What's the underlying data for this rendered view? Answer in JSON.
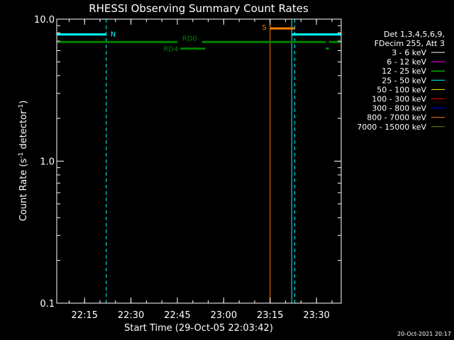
{
  "chart_data": {
    "type": "line",
    "title": "RHESSI Observing Summary Count Rates",
    "xlabel": "Start Time (29-Oct-05 22:03:42)",
    "ylabel_main": "Count Rate (s",
    "ylabel_sup1": "-1",
    "ylabel_mid": " detector",
    "ylabel_sup2": "-1",
    "ylabel_end": ")",
    "yscale": "log",
    "ylim": [
      0.1,
      10.0
    ],
    "xlim": [
      "22:06",
      "23:38"
    ],
    "x_ticks": [
      "22:15",
      "22:30",
      "22:45",
      "23:00",
      "23:15",
      "23:30"
    ],
    "y_ticks": [
      "10.0",
      "1.0",
      "0.1"
    ],
    "legend_header": [
      "Det 1,3,4,5,6,9,",
      "FDecim 255, Att 3"
    ],
    "legend": [
      {
        "label": "3 - 6 keV",
        "color": "#ffffff"
      },
      {
        "label": "6 - 12 keV",
        "color": "#ff00ff"
      },
      {
        "label": "12 - 25 keV",
        "color": "#00ff00"
      },
      {
        "label": "25 - 50 keV",
        "color": "#00ffff"
      },
      {
        "label": "50 - 100 keV",
        "color": "#ffff00"
      },
      {
        "label": "100 - 300 keV",
        "color": "#ff0000"
      },
      {
        "label": "300 - 800 keV",
        "color": "#0000ff"
      },
      {
        "label": "800 - 7000 keV",
        "color": "#ff8000"
      },
      {
        "label": "7000 - 15000 keV",
        "color": "#808000"
      }
    ],
    "flag_bars": [
      {
        "label": "N",
        "color": "#00ffff",
        "y": 7.8,
        "segments": [
          [
            "22:06",
            "22:22"
          ],
          [
            "23:22",
            "23:38"
          ]
        ]
      },
      {
        "label": "RD0",
        "color": "#008000",
        "y": 6.9,
        "segments": [
          [
            "22:06",
            "22:45"
          ],
          [
            "22:53",
            "23:33"
          ],
          [
            "23:34",
            "23:38"
          ]
        ]
      },
      {
        "label": "RD4",
        "color": "#008000",
        "y": 6.2,
        "segments": [
          [
            "22:46",
            "22:54"
          ],
          [
            "23:33",
            "23:34"
          ]
        ]
      },
      {
        "label": "S",
        "color": "#ff8000",
        "y": 8.6,
        "segments": [
          [
            "23:15",
            "23:23"
          ]
        ]
      }
    ],
    "vertical_lines": [
      {
        "x": "22:06",
        "color": "#00ffff",
        "style": "solid"
      },
      {
        "x": "22:22",
        "color": "#00ffff",
        "style": "dashed"
      },
      {
        "x": "23:15",
        "color": "#ff8000",
        "style": "solid"
      },
      {
        "x": "23:22",
        "color": "#00ffff",
        "style": "solid"
      },
      {
        "x": "23:23",
        "color": "#00ffff",
        "style": "dashed"
      },
      {
        "x": "23:38",
        "color": "#00ffff",
        "style": "dashed"
      }
    ],
    "grid": false
  },
  "footer_timestamp": "20-Oct-2021 20:17"
}
